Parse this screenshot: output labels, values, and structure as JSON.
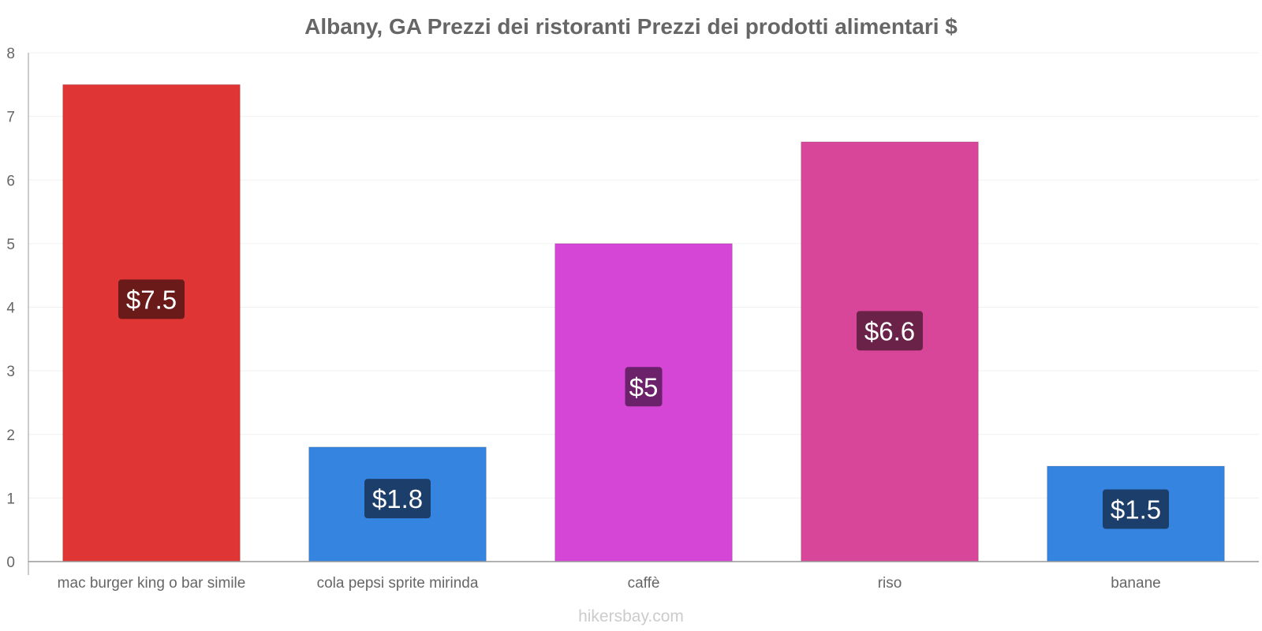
{
  "chart_data": {
    "type": "bar",
    "title": "Albany, GA Prezzi dei ristoranti Prezzi dei prodotti alimentari $",
    "xlabel": "",
    "ylabel": "",
    "ylim": [
      0,
      8
    ],
    "yticks": [
      0,
      1,
      2,
      3,
      4,
      5,
      6,
      7,
      8
    ],
    "grid": true,
    "categories": [
      "mac burger king o bar simile",
      "cola pepsi sprite mirinda",
      "caffè",
      "riso",
      "banane"
    ],
    "values": [
      7.5,
      1.8,
      5,
      6.6,
      1.5
    ],
    "labels": [
      "$7.5",
      "$1.8",
      "$5",
      "$6.6",
      "$1.5"
    ],
    "bar_colors": [
      "#e03535",
      "#3584e0",
      "#d646d6",
      "#d84699",
      "#3584e0"
    ],
    "label_bg_colors": [
      "#6b1a1a",
      "#1b3e6b",
      "#6b226b",
      "#6b2249",
      "#1b3e6b"
    ]
  },
  "footer": {
    "credit": "hikersbay.com"
  }
}
